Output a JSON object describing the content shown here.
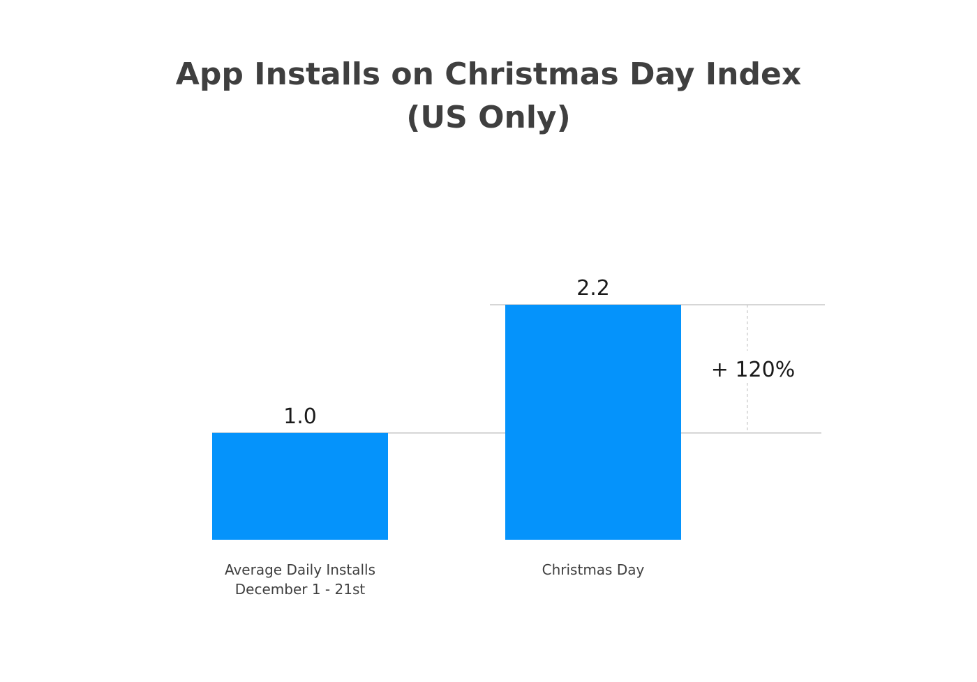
{
  "title_line1": "App Installs on Christmas Day Index",
  "title_line2": "(US Only)",
  "delta_label": "+ 120%",
  "colors": {
    "bar": "#0593fb",
    "title": "#3f3f3f",
    "reference_line": "#c8c8c8",
    "text": "#1a1a1a"
  },
  "chart_data": {
    "type": "bar",
    "title": "App Installs on Christmas Day Index (US Only)",
    "xlabel": "",
    "ylabel": "",
    "grid": false,
    "legend": "none",
    "ylim": [
      0,
      2.2
    ],
    "categories": [
      [
        "Average Daily Installs",
        "December 1 - 21st"
      ],
      [
        "Christmas Day"
      ]
    ],
    "values": [
      1.0,
      2.2
    ],
    "value_labels": [
      "1.0",
      "2.2"
    ],
    "annotations": [
      {
        "text": "+ 120%",
        "between_values": [
          1.0,
          2.2
        ]
      }
    ]
  }
}
